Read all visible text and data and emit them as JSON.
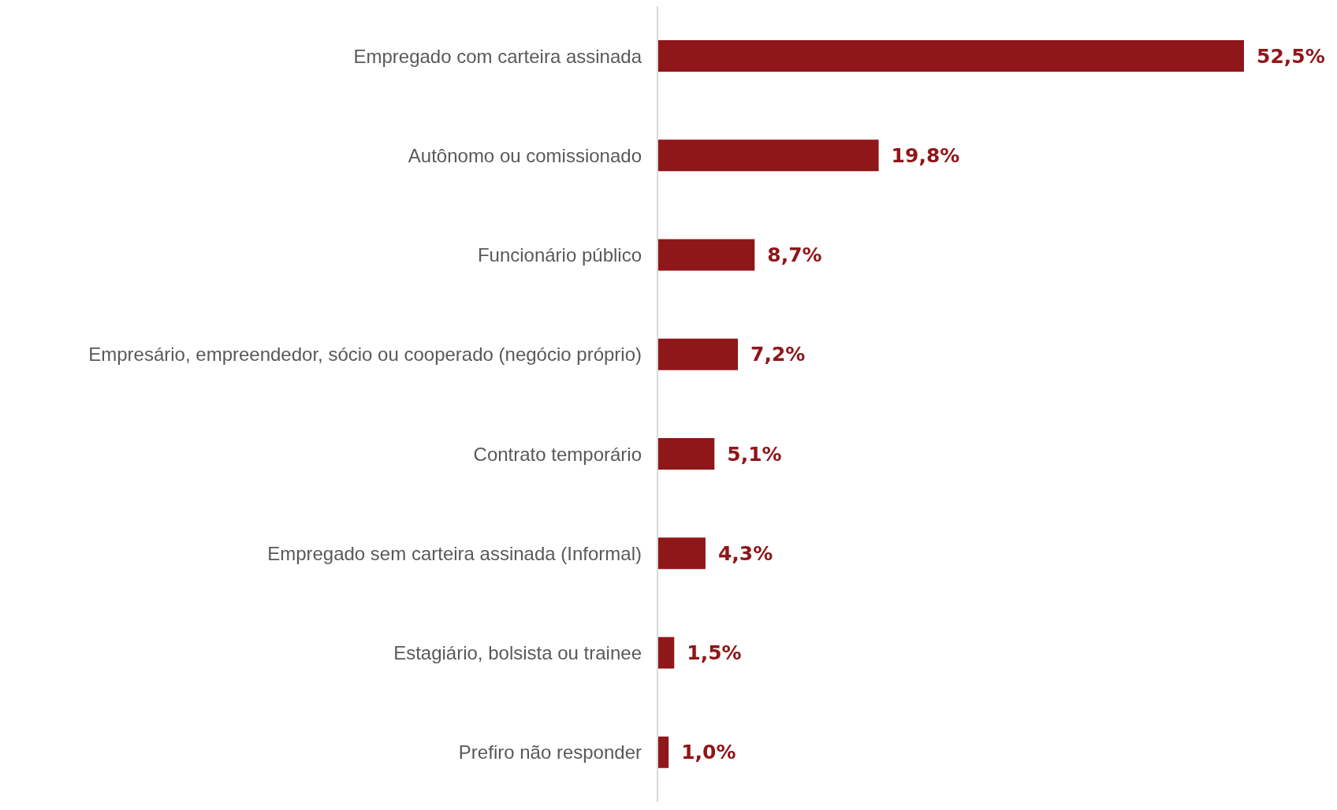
{
  "chart_data": {
    "type": "bar",
    "orientation": "horizontal",
    "categories": [
      "Empregado com carteira assinada",
      "Autônomo ou comissionado",
      "Funcionário público",
      "Empresário, empreendedor, sócio ou cooperado (negócio próprio)",
      "Contrato temporário",
      "Empregado sem carteira assinada (Informal)",
      "Estagiário, bolsista ou trainee",
      "Prefiro não responder"
    ],
    "values": [
      52.5,
      19.8,
      8.7,
      7.2,
      5.1,
      4.3,
      1.5,
      1.0
    ],
    "value_labels": [
      "52,5%",
      "19,8%",
      "8,7%",
      "7,2%",
      "5,1%",
      "4,3%",
      "1,5%",
      "1,0%"
    ],
    "color": "#8f1619"
  }
}
